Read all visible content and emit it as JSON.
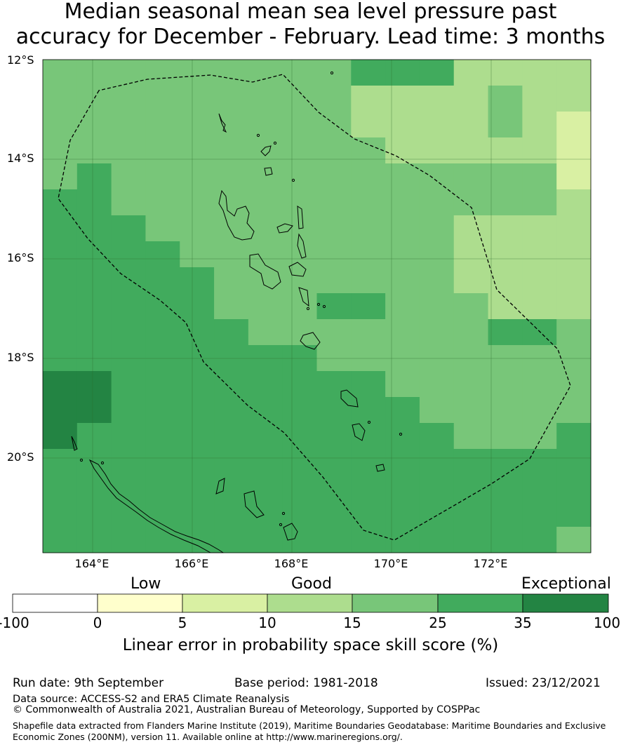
{
  "title": {
    "line1": "Median seasonal mean sea level pressure past",
    "line2": "accuracy for December - February. Lead time: 3 months"
  },
  "map": {
    "lat_labels": [
      "12°S",
      "14°S",
      "16°S",
      "18°S",
      "20°S"
    ],
    "lon_labels": [
      "164°E",
      "166°E",
      "168°E",
      "170°E",
      "172°E"
    ]
  },
  "colorbar": {
    "category_labels": [
      "Low",
      "Good",
      "Exceptional"
    ],
    "ticks": [
      "-100",
      "0",
      "5",
      "10",
      "15",
      "25",
      "35",
      "100"
    ],
    "colors": [
      "#ffffff",
      "#ffffcc",
      "#d9f0a3",
      "#addd8e",
      "#78c679",
      "#41ab5d",
      "#238443"
    ],
    "label": "Linear error in probability space skill score (%)"
  },
  "footer": {
    "run_date": "Run date: 9th September",
    "base_period": "Base period: 1981-2018",
    "issued": "Issued: 23/12/2021",
    "data_source": "Data source: ACCESS-S2 and ERA5 Climate Reanalysis",
    "copyright": "© Commonwealth of Australia 2021, Australian Bureau of Meteorology, Supported by COSPPac",
    "shapefile": "Shapefile data extracted from Flanders Marine Institute (2019), Maritime Boundaries Geodatabase: Maritime Boundaries and Exclusive Economic Zones (200NM), version 11. Available online at http://www.marineregions.org/."
  }
}
